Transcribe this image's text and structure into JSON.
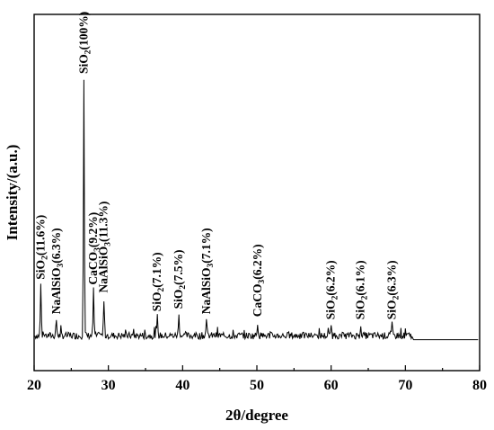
{
  "chart_data": {
    "type": "line",
    "xlabel": "2θ/degree",
    "ylabel": "Intensity/(a.u.)",
    "xlim": [
      20,
      80
    ],
    "ylim": [
      0,
      100
    ],
    "xticks": [
      20,
      30,
      40,
      50,
      60,
      70,
      80
    ],
    "y_tick_labels": false,
    "grid": false,
    "legend": "none",
    "baseline": 4,
    "peaks": [
      {
        "x": 20.9,
        "y": 23,
        "label_parts": [
          "SiO",
          "2",
          "(11.6%)"
        ]
      },
      {
        "x": 23.0,
        "y": 10,
        "label_parts": [
          "NaAlSiO",
          "3",
          "(6.3%)"
        ]
      },
      {
        "x": 26.7,
        "y": 100,
        "label_parts": [
          "SiO",
          "2",
          "(100%)"
        ]
      },
      {
        "x": 28.0,
        "y": 21,
        "label_parts": [
          "CaCO",
          "3",
          "(9.2%)"
        ]
      },
      {
        "x": 29.4,
        "y": 18,
        "label_parts": [
          "NaAlSiO",
          "3",
          "(11.3%)"
        ]
      },
      {
        "x": 36.6,
        "y": 11,
        "label_parts": [
          "SiO",
          "2",
          "(7.1%)"
        ]
      },
      {
        "x": 39.5,
        "y": 12,
        "label_parts": [
          "SiO",
          "2",
          "(7.5%)"
        ]
      },
      {
        "x": 43.2,
        "y": 10,
        "label_parts": [
          "NaAlSiO",
          "3",
          "(7.1%)"
        ]
      },
      {
        "x": 50.1,
        "y": 9,
        "label_parts": [
          "CaCO",
          "3",
          "(6.2%)"
        ]
      },
      {
        "x": 60.0,
        "y": 8,
        "label_parts": [
          "SiO",
          "2",
          "(6.2%)"
        ]
      },
      {
        "x": 64.0,
        "y": 8,
        "label_parts": [
          "SiO",
          "2",
          "(6.1%)"
        ]
      },
      {
        "x": 68.2,
        "y": 8,
        "label_parts": [
          "SiO",
          "2",
          "(6.3%)"
        ]
      }
    ]
  }
}
